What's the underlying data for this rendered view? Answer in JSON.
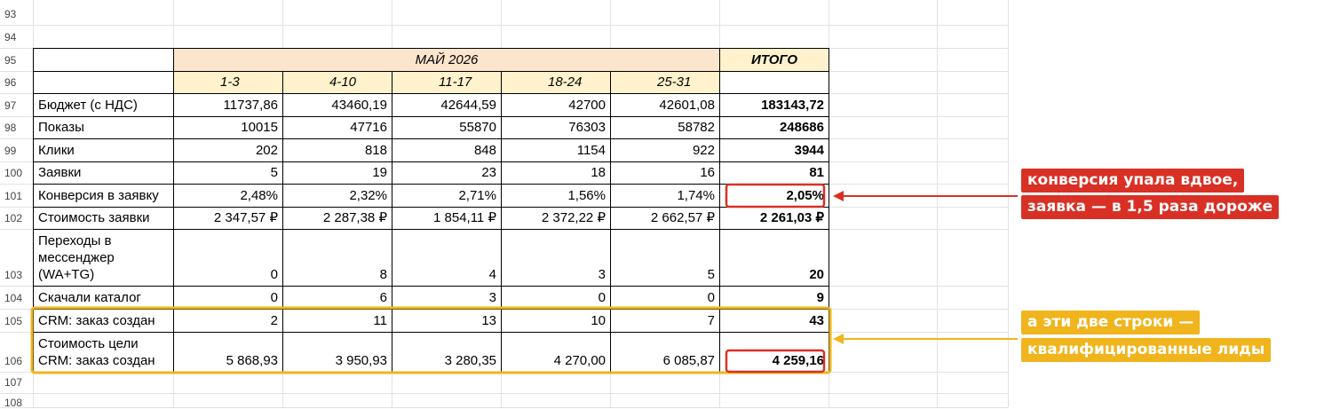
{
  "row_numbers": [
    "93",
    "94",
    "95",
    "96",
    "97",
    "98",
    "99",
    "100",
    "101",
    "102",
    "103",
    "104",
    "105",
    "106",
    "107",
    "108"
  ],
  "header": {
    "month": "МАЙ 2026",
    "total": "ИТОГО",
    "weeks": [
      "1-3",
      "4-10",
      "11-17",
      "18-24",
      "25-31"
    ]
  },
  "table": {
    "rows": [
      {
        "label": "Бюджет (с НДС)",
        "cells": [
          "11737,86",
          "43460,19",
          "42644,59",
          "42700",
          "42601,08"
        ],
        "total": "183143,72"
      },
      {
        "label": "Показы",
        "cells": [
          "10015",
          "47716",
          "55870",
          "76303",
          "58782"
        ],
        "total": "248686"
      },
      {
        "label": "Клики",
        "cells": [
          "202",
          "818",
          "848",
          "1154",
          "922"
        ],
        "total": "3944"
      },
      {
        "label": "Заявки",
        "cells": [
          "5",
          "19",
          "23",
          "18",
          "16"
        ],
        "total": "81"
      },
      {
        "label": "Конверсия в заявку",
        "cells": [
          "2,48%",
          "2,32%",
          "2,71%",
          "1,56%",
          "1,74%"
        ],
        "total": "2,05%"
      },
      {
        "label": "Стоимость заявки",
        "cells": [
          "2 347,57 ₽",
          "2 287,38 ₽",
          "1 854,11 ₽",
          "2 372,22 ₽",
          "2 662,57 ₽"
        ],
        "total": "2 261,03 ₽"
      },
      {
        "label": "Переходы в мессенджер (WA+TG)",
        "cells": [
          "0",
          "8",
          "4",
          "3",
          "5"
        ],
        "total": "20"
      },
      {
        "label": "Скачали каталог",
        "cells": [
          "0",
          "6",
          "3",
          "0",
          "0"
        ],
        "total": "9"
      },
      {
        "label": "CRM: заказ создан",
        "cells": [
          "2",
          "11",
          "13",
          "10",
          "7"
        ],
        "total": "43"
      },
      {
        "label": "Стоимость цели CRM: заказ создан",
        "cells": [
          "5 868,93",
          "3 950,93",
          "3 280,35",
          "4 270,00",
          "6 085,87"
        ],
        "total": "4 259,16"
      }
    ]
  },
  "annotations": [
    {
      "lines": [
        "конверсия упала вдвое,",
        "заявка — в 1,5 раза дороже"
      ]
    },
    {
      "lines": [
        "а эти две строки —",
        "квалифицированные лиды"
      ]
    }
  ]
}
